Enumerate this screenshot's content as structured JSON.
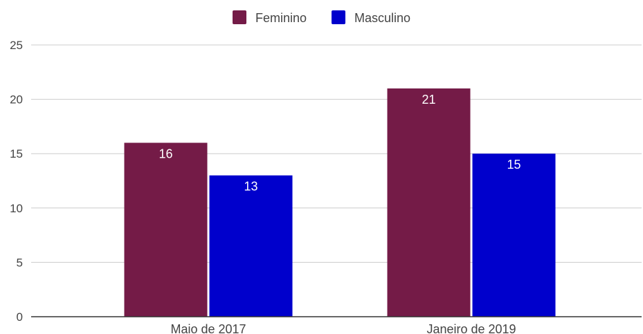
{
  "chart_data": {
    "type": "bar",
    "categories": [
      "Maio de 2017",
      "Janeiro de 2019"
    ],
    "series": [
      {
        "name": "Feminino",
        "values": [
          16,
          21
        ],
        "color": "#741b47"
      },
      {
        "name": "Masculino",
        "values": [
          13,
          15
        ],
        "color": "#0000cc"
      }
    ],
    "ylim": [
      0,
      25
    ],
    "yticks": [
      0,
      5,
      10,
      15,
      20,
      25
    ],
    "grid": true,
    "legend_position": "top-center"
  }
}
